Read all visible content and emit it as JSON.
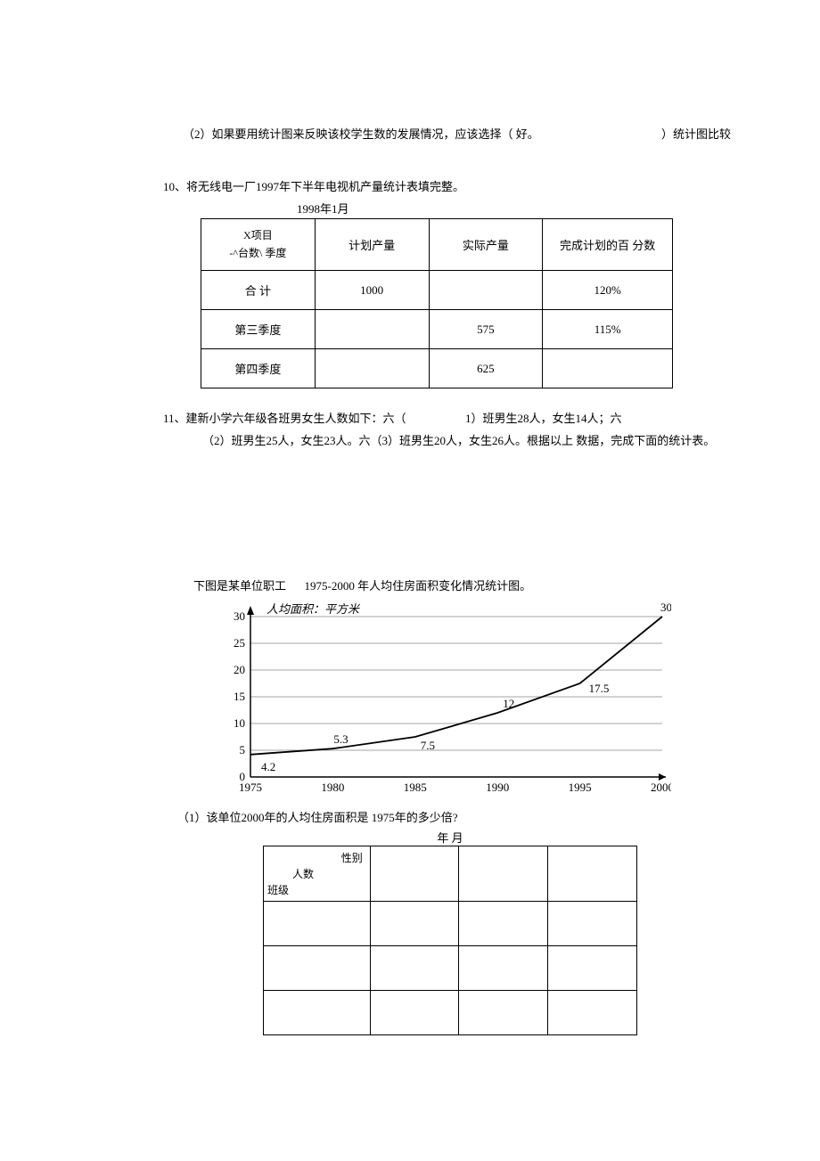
{
  "q2": {
    "text": "（2）如果要用统计图来反映该校学生数的发展情况，应该选择（ 好。",
    "right": "）统计图比较"
  },
  "q10": {
    "title": "10、将无线电一厂1997年下半年电视机产量统计表填完整。",
    "date": "1998年1月",
    "headers": {
      "c0_l1": "X项目",
      "c0_l2": "-^台数\\ 季度",
      "c1": "计划产量",
      "c2": "实际产量",
      "c3": "完成计划的百 分数"
    },
    "rows": [
      {
        "label": "合 计",
        "plan": "1000",
        "actual": "",
        "pct": "120%"
      },
      {
        "label": "第三季度",
        "plan": "",
        "actual": "575",
        "pct": "115%"
      },
      {
        "label": "第四季度",
        "plan": "",
        "actual": "625",
        "pct": ""
      }
    ]
  },
  "q11": {
    "line1_a": "11、建新小学六年级各班男女生人数如下：六（",
    "line1_b": "1）班男生28人，女生14人；六",
    "line2": "（2）班男生25人，女生23人。六（3）班男生20人，女生26人。根据以上 数据，完成下面的统计表。"
  },
  "chart": {
    "title_a": "下图是某单位职工",
    "title_b": "1975-2000 年人均住房面积变化情况统计图。",
    "ylabel": "人均面积：平方米",
    "ylim": [
      0,
      30
    ],
    "yticks": [
      0,
      5,
      10,
      15,
      20,
      25,
      30
    ],
    "xticks": [
      1975,
      1980,
      1985,
      1990,
      1995,
      2000
    ],
    "data": [
      {
        "x": 1975,
        "y": 4.2,
        "label": "4.2"
      },
      {
        "x": 1980,
        "y": 5.3,
        "label": "5.3"
      },
      {
        "x": 1985,
        "y": 7.5,
        "label": "7.5"
      },
      {
        "x": 1990,
        "y": 12,
        "label": "12"
      },
      {
        "x": 1995,
        "y": 17.5,
        "label": "17.5"
      },
      {
        "x": 2000,
        "y": 30,
        "label": "30"
      }
    ],
    "axis_color": "#000000",
    "grid_color": "#888888",
    "line_color": "#000000",
    "label_fontsize": 13,
    "tick_fontsize": 13
  },
  "q12": {
    "sub1": "（1）该单位2000年的人均住房面积是 1975年的多少倍?",
    "date": "年 月",
    "header_labels": {
      "a": "性别",
      "b": "人数",
      "c": "班级"
    }
  }
}
